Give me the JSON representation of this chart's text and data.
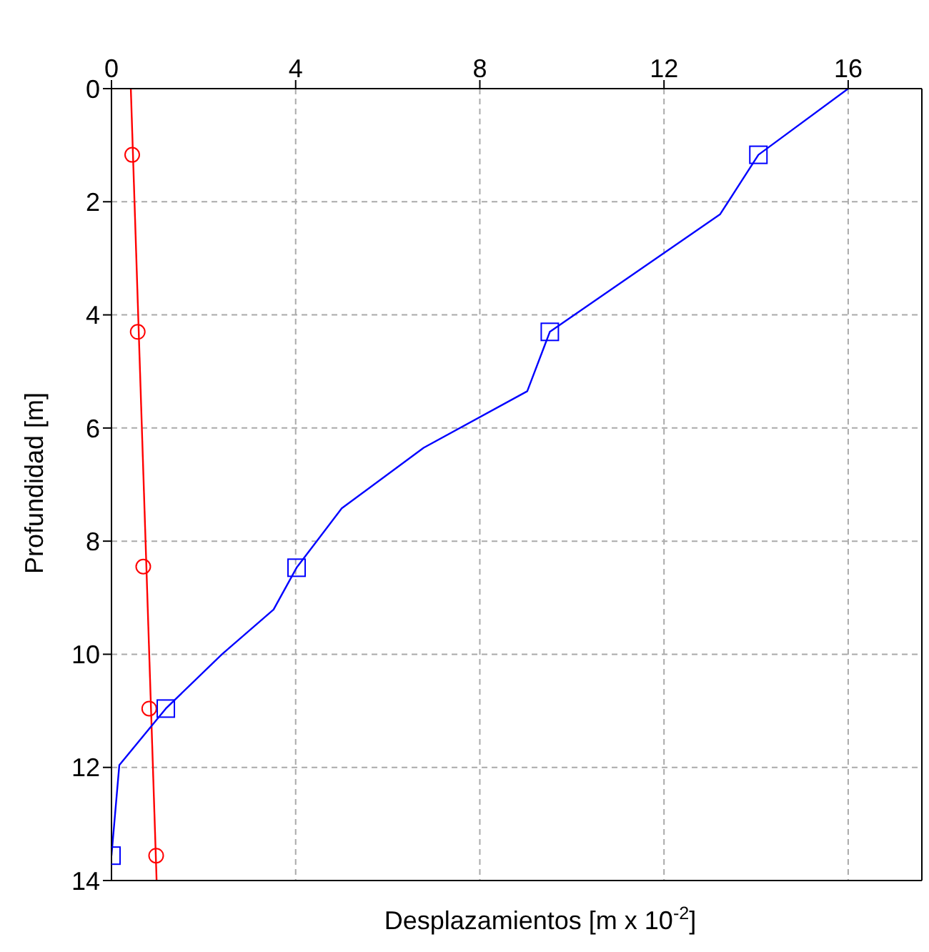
{
  "chart_data": {
    "type": "line",
    "xlabel": "Desplazamientos [m x 10$^{-2}$]",
    "ylabel": "Profundidad [m]",
    "xlim": [
      0,
      17.6
    ],
    "xticks": [
      0,
      4,
      8,
      12,
      16
    ],
    "ylim": [
      14,
      0
    ],
    "yticks": [
      0,
      2,
      4,
      6,
      8,
      10,
      12,
      14
    ],
    "grid": true,
    "line_style": "solid",
    "series": [
      {
        "color": "#ff0000",
        "marker": "none",
        "x": [
          0.42,
          0.98
        ],
        "values": [
          0,
          14
        ]
      },
      {
        "type": "scatter",
        "color": "#ff0000",
        "marker": "circle",
        "x": [
          0.45,
          0.57,
          0.69,
          0.82,
          0.97
        ],
        "values": [
          1.17,
          4.3,
          8.45,
          10.96,
          13.56
        ]
      },
      {
        "color": "#0000ff",
        "marker": "none",
        "x": [
          16,
          14.05,
          13.22,
          9.52,
          9.03,
          6.78,
          5.0,
          4.02,
          3.52,
          2.4,
          1.18,
          0.17,
          0
        ],
        "values": [
          0,
          1.17,
          2.22,
          4.3,
          5.35,
          6.35,
          7.42,
          8.47,
          9.21,
          10.0,
          10.96,
          11.96,
          13.56
        ]
      },
      {
        "type": "scatter",
        "color": "#0000ff",
        "marker": "square",
        "x": [
          14.05,
          9.52,
          4.02,
          1.18,
          0
        ],
        "values": [
          1.17,
          4.3,
          8.47,
          10.96,
          13.56
        ]
      }
    ]
  }
}
